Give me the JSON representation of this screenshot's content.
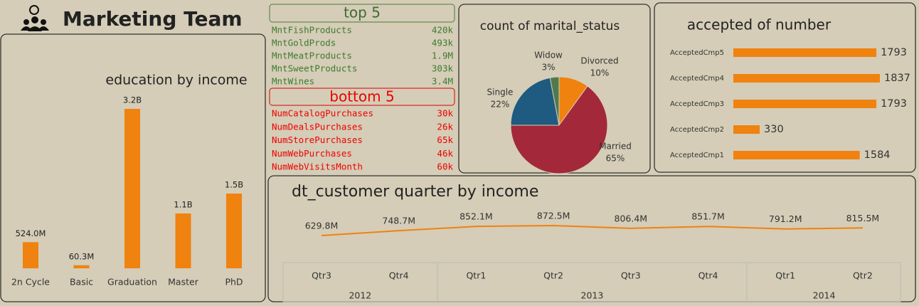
{
  "header": {
    "title": "Marketing Team"
  },
  "top5": {
    "title": "top 5",
    "rows": [
      {
        "name": "MntFishProducts",
        "value": "420k"
      },
      {
        "name": "MntGoldProds",
        "value": "493k"
      },
      {
        "name": "MntMeatProducts",
        "value": "1.9M"
      },
      {
        "name": "MntSweetProducts",
        "value": "303k"
      },
      {
        "name": "MntWines",
        "value": "3.4M"
      }
    ]
  },
  "bottom5": {
    "title": "bottom 5",
    "rows": [
      {
        "name": "NumCatalogPurchases",
        "value": "30k"
      },
      {
        "name": "NumDealsPurchases",
        "value": "26k"
      },
      {
        "name": "NumStorePurchases",
        "value": "65k"
      },
      {
        "name": "NumWebPurchases",
        "value": "46k"
      },
      {
        "name": "NumWebVisitsMonth",
        "value": "60k"
      }
    ]
  },
  "chart_data": [
    {
      "type": "bar",
      "title": "education by income",
      "categories": [
        "2n Cycle",
        "Basic",
        "Graduation",
        "Master",
        "PhD"
      ],
      "values": [
        524000000,
        60300000,
        3200000000,
        1100000000,
        1500000000
      ],
      "value_labels": [
        "524.0M",
        "60.3M",
        "3.2B",
        "1.1B",
        "1.5B"
      ],
      "color": "#f0820f"
    },
    {
      "type": "pie",
      "title": "count of marital_status",
      "categories": [
        "Divorced",
        "Married",
        "Single",
        "Widow"
      ],
      "values": [
        10,
        65,
        22,
        3
      ],
      "value_labels": [
        "10%",
        "65%",
        "22%",
        "3%"
      ],
      "colors": [
        "#f0820f",
        "#a3283a",
        "#1f5a80",
        "#4e7a4e"
      ]
    },
    {
      "type": "bar",
      "orientation": "horizontal",
      "title": "accepted of number",
      "categories": [
        "AcceptedCmp5",
        "AcceptedCmp4",
        "AcceptedCmp3",
        "AcceptedCmp2",
        "AcceptedCmp1"
      ],
      "values": [
        1793,
        1837,
        1793,
        330,
        1584
      ],
      "color": "#f0820f"
    },
    {
      "type": "line",
      "title": "dt_customer quarter by income",
      "groups": [
        {
          "label": "2012",
          "categories": [
            "Qtr3",
            "Qtr4"
          ]
        },
        {
          "label": "2013",
          "categories": [
            "Qtr1",
            "Qtr2",
            "Qtr3",
            "Qtr4"
          ]
        },
        {
          "label": "2014",
          "categories": [
            "Qtr1",
            "Qtr2"
          ]
        }
      ],
      "values": [
        629800000,
        748700000,
        852100000,
        872500000,
        806400000,
        851700000,
        791200000,
        815500000
      ],
      "value_labels": [
        "629.8M",
        "748.7M",
        "852.1M",
        "872.5M",
        "806.4M",
        "851.7M",
        "791.2M",
        "815.5M"
      ],
      "color": "#f0820f"
    }
  ]
}
